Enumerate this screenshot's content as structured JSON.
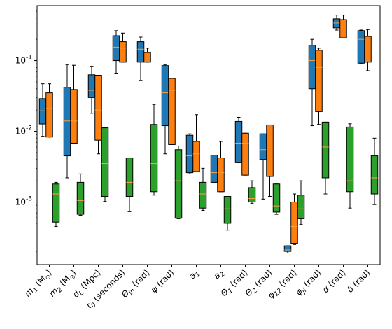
{
  "chart_data": {
    "type": "box",
    "title": "",
    "xlabel": "",
    "ylabel": "",
    "yscale": "log",
    "ylim": [
      0.00013,
      0.6
    ],
    "grid": false,
    "legend": "none",
    "y_ticks": [
      {
        "value": 0.001,
        "label": "10",
        "exp": "-3"
      },
      {
        "value": 0.01,
        "label": "10",
        "exp": "-2"
      },
      {
        "value": 0.1,
        "label": "10",
        "exp": "-1"
      }
    ],
    "categories": [
      {
        "base": "m",
        "sub": "1",
        "unit": " (M",
        "unit_sub": "⊙",
        "unit_end": ")"
      },
      {
        "base": "m",
        "sub": "2",
        "unit": " (M",
        "unit_sub": "⊙",
        "unit_end": ")"
      },
      {
        "base": "d",
        "sub": "L",
        "unit": " (Mpc)",
        "unit_sub": "",
        "unit_end": ""
      },
      {
        "base": "t",
        "sub": "0",
        "unit": " (seconds)",
        "unit_sub": "",
        "unit_end": ""
      },
      {
        "base": "Θ",
        "sub": "jn",
        "unit": " (rad)",
        "unit_sub": "",
        "unit_end": ""
      },
      {
        "base": "ψ",
        "sub": "",
        "unit": " (rad)",
        "unit_sub": "",
        "unit_end": ""
      },
      {
        "base": "a",
        "sub": "1",
        "unit": "",
        "unit_sub": "",
        "unit_end": ""
      },
      {
        "base": "a",
        "sub": "2",
        "unit": "",
        "unit_sub": "",
        "unit_end": ""
      },
      {
        "base": "Θ",
        "sub": "1",
        "unit": " (rad)",
        "unit_sub": "",
        "unit_end": ""
      },
      {
        "base": "Θ",
        "sub": "2",
        "unit": " (rad)",
        "unit_sub": "",
        "unit_end": ""
      },
      {
        "base": "φ",
        "sub": "12",
        "unit": " (rad)",
        "unit_sub": "",
        "unit_end": ""
      },
      {
        "base": "φ",
        "sub": "jl",
        "unit": " (rad)",
        "unit_sub": "",
        "unit_end": ""
      },
      {
        "base": "α",
        "sub": "",
        "unit": " (rad)",
        "unit_sub": "",
        "unit_end": ""
      },
      {
        "base": "δ",
        "sub": "",
        "unit": " (rad)",
        "unit_sub": "",
        "unit_end": ""
      }
    ],
    "series": [
      {
        "color": "#1f77b4",
        "boxes": [
          {
            "whislo": 0.0085,
            "q1": 0.0127,
            "med": 0.0195,
            "q3": 0.029,
            "whishi": 0.047
          },
          {
            "whislo": 0.0022,
            "q1": 0.0045,
            "med": 0.014,
            "q3": 0.042,
            "whishi": 0.088
          },
          {
            "whislo": 0.018,
            "q1": 0.03,
            "med": 0.038,
            "q3": 0.063,
            "whishi": 0.082
          },
          {
            "whislo": 0.065,
            "q1": 0.1,
            "med": 0.155,
            "q3": 0.225,
            "whishi": 0.265
          },
          {
            "whislo": 0.052,
            "q1": 0.095,
            "med": 0.145,
            "q3": 0.185,
            "whishi": 0.215
          },
          {
            "whislo": 0.0048,
            "q1": 0.012,
            "med": 0.035,
            "q3": 0.085,
            "whishi": 0.088
          },
          {
            "whislo": 0.0025,
            "q1": 0.0026,
            "med": 0.0045,
            "q3": 0.0088,
            "whishi": 0.0092
          },
          {
            "whislo": 0.0019,
            "q1": 0.0019,
            "med": 0.0026,
            "q3": 0.0046,
            "whishi": 0.0046
          },
          {
            "whislo": 0.0036,
            "q1": 0.0036,
            "med": 0.0068,
            "q3": 0.0138,
            "whishi": 0.0158
          },
          {
            "whislo": 0.0011,
            "q1": 0.004,
            "med": 0.0055,
            "q3": 0.0092,
            "whishi": 0.0092
          },
          {
            "whislo": 0.00019,
            "q1": 0.0002,
            "med": 0.00021,
            "q3": 0.00024,
            "whishi": 0.00024
          },
          {
            "whislo": 0.012,
            "q1": 0.04,
            "med": 0.1,
            "q3": 0.165,
            "whishi": 0.2
          },
          {
            "whislo": 0.27,
            "q1": 0.29,
            "med": 0.34,
            "q3": 0.39,
            "whishi": 0.44
          },
          {
            "whislo": 0.09,
            "q1": 0.092,
            "med": 0.2,
            "q3": 0.265,
            "whishi": 0.27
          }
        ]
      },
      {
        "color": "#ff7f0e",
        "boxes": [
          {
            "whislo": 0.0083,
            "q1": 0.0083,
            "med": 0.021,
            "q3": 0.035,
            "whishi": 0.047
          },
          {
            "whislo": 0.0068,
            "q1": 0.0068,
            "med": 0.014,
            "q3": 0.039,
            "whishi": 0.086
          },
          {
            "whislo": 0.0048,
            "q1": 0.0075,
            "med": 0.02,
            "q3": 0.062,
            "whishi": 0.062
          },
          {
            "whislo": 0.095,
            "q1": 0.095,
            "med": 0.15,
            "q3": 0.185,
            "whishi": 0.245
          },
          {
            "whislo": 0.095,
            "q1": 0.095,
            "med": 0.12,
            "q3": 0.13,
            "whishi": 0.15
          },
          {
            "whislo": 0.0065,
            "q1": 0.0065,
            "med": 0.038,
            "q3": 0.056,
            "whishi": 0.056
          },
          {
            "whislo": 0.0027,
            "q1": 0.0027,
            "med": 0.0048,
            "q3": 0.0072,
            "whishi": 0.0172
          },
          {
            "whislo": 0.0014,
            "q1": 0.0014,
            "med": 0.0026,
            "q3": 0.0042,
            "whishi": 0.0072
          },
          {
            "whislo": 0.0024,
            "q1": 0.0024,
            "med": 0.0068,
            "q3": 0.0094,
            "whishi": 0.0094
          },
          {
            "whislo": 0.0012,
            "q1": 0.0023,
            "med": 0.0058,
            "q3": 0.0123,
            "whishi": 0.0123
          },
          {
            "whislo": 0.00025,
            "q1": 0.00026,
            "med": 0.00045,
            "q3": 0.001,
            "whishi": 0.0013
          },
          {
            "whislo": 0.0125,
            "q1": 0.019,
            "med": 0.08,
            "q3": 0.14,
            "whishi": 0.15
          },
          {
            "whislo": 0.21,
            "q1": 0.21,
            "med": 0.3,
            "q3": 0.38,
            "whishi": 0.44
          },
          {
            "whislo": 0.072,
            "q1": 0.095,
            "med": 0.19,
            "q3": 0.22,
            "whishi": 0.275
          }
        ]
      },
      {
        "color": "#2ca02c",
        "boxes": [
          {
            "whislo": 0.00045,
            "q1": 0.00052,
            "med": 0.0013,
            "q3": 0.0018,
            "whishi": 0.0019
          },
          {
            "whislo": 0.00065,
            "q1": 0.00067,
            "med": 0.00105,
            "q3": 0.0019,
            "whishi": 0.0025
          },
          {
            "whislo": 0.00102,
            "q1": 0.0012,
            "med": 0.0035,
            "q3": 0.0112,
            "whishi": 0.0112
          },
          {
            "whislo": 0.00073,
            "q1": 0.0012,
            "med": 0.0019,
            "q3": 0.0042,
            "whishi": 0.0042
          },
          {
            "whislo": 0.00125,
            "q1": 0.0014,
            "med": 0.0035,
            "q3": 0.0125,
            "whishi": 0.024
          },
          {
            "whislo": 0.00058,
            "q1": 0.00059,
            "med": 0.002,
            "q3": 0.0055,
            "whishi": 0.0062
          },
          {
            "whislo": 0.00076,
            "q1": 0.00082,
            "med": 0.0013,
            "q3": 0.0019,
            "whishi": 0.003
          },
          {
            "whislo": 0.0004,
            "q1": 0.0005,
            "med": 0.0008,
            "q3": 0.0012,
            "whishi": 0.0012
          },
          {
            "whislo": 0.00095,
            "q1": 0.001,
            "med": 0.00112,
            "q3": 0.0016,
            "whishi": 0.002
          },
          {
            "whislo": 0.00067,
            "q1": 0.00072,
            "med": 0.00088,
            "q3": 0.0018,
            "whishi": 0.0018
          },
          {
            "whislo": 0.00048,
            "q1": 0.00058,
            "med": 0.0008,
            "q3": 0.00125,
            "whishi": 0.002
          },
          {
            "whislo": 0.0013,
            "q1": 0.0022,
            "med": 0.006,
            "q3": 0.0135,
            "whishi": 0.0135
          },
          {
            "whislo": 0.00082,
            "q1": 0.0014,
            "med": 0.002,
            "q3": 0.0115,
            "whishi": 0.0128
          },
          {
            "whislo": 0.00092,
            "q1": 0.0013,
            "med": 0.0022,
            "q3": 0.0045,
            "whishi": 0.008
          }
        ]
      }
    ]
  }
}
